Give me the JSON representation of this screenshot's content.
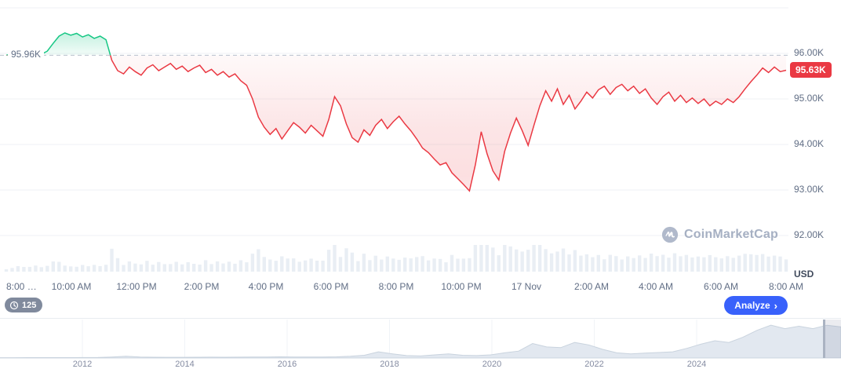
{
  "chart_data": {
    "type": "line",
    "title": "",
    "unit": "USD",
    "baseline": {
      "label": "95.96K",
      "value": 95.96
    },
    "current_price": {
      "label": "95.63K",
      "value": 95.63
    },
    "watermark": "CoinMarketCap",
    "colors": {
      "up": "#16c784",
      "down": "#ea3943",
      "grid": "#eff2f5",
      "axis_text": "#616e85",
      "volume_bar": "#e9eef4",
      "navigator_fill": "#e2e8f0",
      "accent_blue": "#3861fb"
    },
    "y_axis": {
      "ticks": [
        {
          "label": "96.00K",
          "value": 96.0
        },
        {
          "label": "95.00K",
          "value": 95.0
        },
        {
          "label": "94.00K",
          "value": 94.0
        },
        {
          "label": "93.00K",
          "value": 93.0
        },
        {
          "label": "92.00K",
          "value": 92.0
        }
      ],
      "unit_label": "USD"
    },
    "x_axis": {
      "ticks": [
        "8:00 …",
        "10:00 AM",
        "12:00 PM",
        "2:00 PM",
        "4:00 PM",
        "6:00 PM",
        "8:00 PM",
        "10:00 PM",
        "17 Nov",
        "2:00 AM",
        "4:00 AM",
        "6:00 AM",
        "8:00 AM"
      ]
    },
    "series": [
      {
        "name": "price",
        "color_above": "#16c784",
        "color_below": "#ea3943",
        "values": [
          95.96,
          95.99,
          95.92,
          95.97,
          96.02,
          95.94,
          95.98,
          96.05,
          96.22,
          96.38,
          96.45,
          96.4,
          96.44,
          96.36,
          96.41,
          96.33,
          96.38,
          96.3,
          95.85,
          95.62,
          95.55,
          95.7,
          95.6,
          95.52,
          95.68,
          95.75,
          95.62,
          95.7,
          95.78,
          95.65,
          95.72,
          95.6,
          95.68,
          95.74,
          95.58,
          95.65,
          95.52,
          95.6,
          95.48,
          95.55,
          95.4,
          95.3,
          95.0,
          94.6,
          94.38,
          94.22,
          94.35,
          94.12,
          94.3,
          94.48,
          94.38,
          94.25,
          94.42,
          94.3,
          94.18,
          94.55,
          95.05,
          94.85,
          94.45,
          94.15,
          94.05,
          94.32,
          94.2,
          94.42,
          94.55,
          94.35,
          94.5,
          94.62,
          94.45,
          94.3,
          94.12,
          93.92,
          93.82,
          93.68,
          93.55,
          93.6,
          93.38,
          93.25,
          93.12,
          92.98,
          93.55,
          94.28,
          93.8,
          93.42,
          93.22,
          93.85,
          94.25,
          94.58,
          94.3,
          93.98,
          94.42,
          94.85,
          95.18,
          94.95,
          95.22,
          94.88,
          95.08,
          94.78,
          94.95,
          95.15,
          95.02,
          95.2,
          95.28,
          95.1,
          95.25,
          95.32,
          95.18,
          95.28,
          95.12,
          95.22,
          95.02,
          94.88,
          95.05,
          95.15,
          94.95,
          95.08,
          94.92,
          95.02,
          94.9,
          95.0,
          94.85,
          94.95,
          94.88,
          95.0,
          94.92,
          95.05,
          95.22,
          95.38,
          95.52,
          95.68,
          95.58,
          95.7,
          95.6,
          95.63
        ]
      }
    ],
    "navigator": {
      "year_ticks": [
        "2012",
        "2014",
        "2016",
        "2018",
        "2020",
        "2022",
        "2024"
      ],
      "values": [
        0.01,
        0.01,
        0.011,
        0.011,
        0.012,
        0.012,
        0.013,
        0.015,
        0.03,
        0.05,
        0.03,
        0.022,
        0.02,
        0.02,
        0.022,
        0.024,
        0.022,
        0.025,
        0.028,
        0.03,
        0.035,
        0.03,
        0.028,
        0.03,
        0.035,
        0.05,
        0.08,
        0.18,
        0.12,
        0.07,
        0.06,
        0.09,
        0.12,
        0.08,
        0.07,
        0.09,
        0.15,
        0.2,
        0.42,
        0.32,
        0.3,
        0.45,
        0.38,
        0.25,
        0.15,
        0.12,
        0.14,
        0.16,
        0.18,
        0.28,
        0.4,
        0.5,
        0.45,
        0.6,
        0.8,
        0.95,
        0.85,
        0.92,
        0.85,
        0.95,
        0.9
      ]
    }
  },
  "toolbar": {
    "history_count": "125",
    "analyze_label": "Analyze",
    "analyze_chevron": "›"
  }
}
